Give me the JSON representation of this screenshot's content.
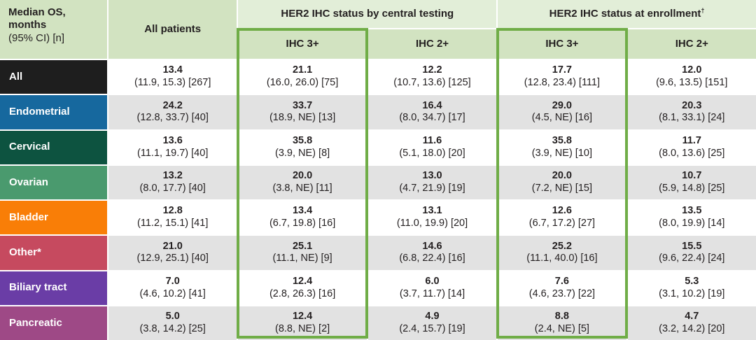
{
  "chart_data": {
    "type": "table",
    "title": "Median OS, months (95% CI) [n] by tumor type and HER2 IHC status",
    "corner": {
      "title": "Median OS, months",
      "subtitle": "(95% CI) [n]"
    },
    "all_patients_header": "All patients",
    "groups": [
      {
        "label": "HER2 IHC status by central testing",
        "suffix": "",
        "subcols": [
          "IHC 3+",
          "IHC 2+"
        ]
      },
      {
        "label": "HER2 IHC status at enrollment",
        "suffix": "†",
        "subcols": [
          "IHC 3+",
          "IHC 2+"
        ]
      }
    ],
    "column_keys": [
      "All patients",
      "IHC 3+ (central testing)",
      "IHC 2+ (central testing)",
      "IHC 3+ (at enrollment)",
      "IHC 2+ (at enrollment)"
    ],
    "highlight_border_color": "#70ad47",
    "header_bg": "#d2e3c1",
    "group_header_bg": "#e2eed8",
    "alt_row_bg": "#e2e2e2",
    "rows": [
      {
        "label": "All",
        "color": "#1e1e1e",
        "cells": [
          {
            "median": "13.4",
            "ci": "(11.9, 15.3)",
            "n": 267
          },
          {
            "median": "21.1",
            "ci": "(16.0, 26.0)",
            "n": 75
          },
          {
            "median": "12.2",
            "ci": "(10.7, 13.6)",
            "n": 125
          },
          {
            "median": "17.7",
            "ci": "(12.8, 23.4)",
            "n": 111
          },
          {
            "median": "12.0",
            "ci": "(9.6, 13.5)",
            "n": 151
          }
        ]
      },
      {
        "label": "Endometrial",
        "color": "#16689e",
        "cells": [
          {
            "median": "24.2",
            "ci": "(12.8, 33.7)",
            "n": 40
          },
          {
            "median": "33.7",
            "ci": "(18.9, NE)",
            "n": 13
          },
          {
            "median": "16.4",
            "ci": "(8.0, 34.7)",
            "n": 17
          },
          {
            "median": "29.0",
            "ci": "(4.5, NE)",
            "n": 16
          },
          {
            "median": "20.3",
            "ci": "(8.1, 33.1)",
            "n": 24
          }
        ]
      },
      {
        "label": "Cervical",
        "color": "#0d5340",
        "cells": [
          {
            "median": "13.6",
            "ci": "(11.1, 19.7)",
            "n": 40
          },
          {
            "median": "35.8",
            "ci": "(3.9, NE)",
            "n": 8
          },
          {
            "median": "11.6",
            "ci": "(5.1, 18.0)",
            "n": 20
          },
          {
            "median": "35.8",
            "ci": "(3.9, NE)",
            "n": 10
          },
          {
            "median": "11.7",
            "ci": "(8.0, 13.6)",
            "n": 25
          }
        ]
      },
      {
        "label": "Ovarian",
        "color": "#4a9a6e",
        "cells": [
          {
            "median": "13.2",
            "ci": "(8.0, 17.7)",
            "n": 40
          },
          {
            "median": "20.0",
            "ci": "(3.8, NE)",
            "n": 11
          },
          {
            "median": "13.0",
            "ci": "(4.7, 21.9)",
            "n": 19
          },
          {
            "median": "20.0",
            "ci": "(7.2, NE)",
            "n": 15
          },
          {
            "median": "10.7",
            "ci": "(5.9, 14.8)",
            "n": 25
          }
        ]
      },
      {
        "label": "Bladder",
        "color": "#f97e07",
        "cells": [
          {
            "median": "12.8",
            "ci": "(11.2, 15.1)",
            "n": 41
          },
          {
            "median": "13.4",
            "ci": "(6.7, 19.8)",
            "n": 16
          },
          {
            "median": "13.1",
            "ci": "(11.0, 19.9)",
            "n": 20
          },
          {
            "median": "12.6",
            "ci": "(6.7, 17.2)",
            "n": 27
          },
          {
            "median": "13.5",
            "ci": "(8.0, 19.9)",
            "n": 14
          }
        ]
      },
      {
        "label": "Other*",
        "color": "#c64a5f",
        "cells": [
          {
            "median": "21.0",
            "ci": "(12.9, 25.1)",
            "n": 40
          },
          {
            "median": "25.1",
            "ci": "(11.1, NE)",
            "n": 9
          },
          {
            "median": "14.6",
            "ci": "(6.8, 22.4)",
            "n": 16
          },
          {
            "median": "25.2",
            "ci": "(11.1, 40.0)",
            "n": 16
          },
          {
            "median": "15.5",
            "ci": "(9.6, 22.4)",
            "n": 24
          }
        ]
      },
      {
        "label": "Biliary tract",
        "color": "#6a3da6",
        "cells": [
          {
            "median": "7.0",
            "ci": "(4.6, 10.2)",
            "n": 41
          },
          {
            "median": "12.4",
            "ci": "(2.8, 26.3)",
            "n": 16
          },
          {
            "median": "6.0",
            "ci": "(3.7, 11.7)",
            "n": 14
          },
          {
            "median": "7.6",
            "ci": "(4.6, 23.7)",
            "n": 22
          },
          {
            "median": "5.3",
            "ci": "(3.1, 10.2)",
            "n": 19
          }
        ]
      },
      {
        "label": "Pancreatic",
        "color": "#9e4986",
        "cells": [
          {
            "median": "5.0",
            "ci": "(3.8, 14.2)",
            "n": 25
          },
          {
            "median": "12.4",
            "ci": "(8.8, NE)",
            "n": 2
          },
          {
            "median": "4.9",
            "ci": "(2.4, 15.7)",
            "n": 19
          },
          {
            "median": "8.8",
            "ci": "(2.4, NE)",
            "n": 5
          },
          {
            "median": "4.7",
            "ci": "(3.2, 14.2)",
            "n": 20
          }
        ]
      }
    ]
  }
}
